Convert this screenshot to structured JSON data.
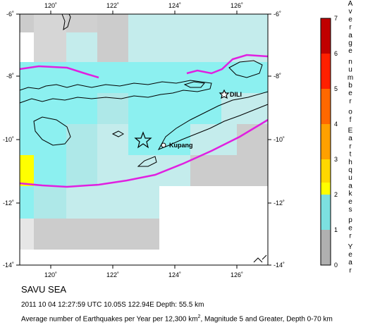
{
  "map": {
    "lon_ticks": [
      "120˚",
      "122˚",
      "124˚",
      "126˚"
    ],
    "lat_ticks_left": [
      "-6˚",
      "-8˚",
      "-10˚",
      "-12˚",
      "-14˚"
    ],
    "lat_ticks_right": [
      "-6˚",
      "-8˚",
      "-10˚",
      "-12˚",
      "-14˚"
    ],
    "places": [
      {
        "name": "DILI"
      },
      {
        "name": "Kupang"
      }
    ],
    "epicenter_icon": "star-icon",
    "plate_boundary_color": "#e020e0",
    "land_outline_color": "#000000",
    "grid_colors": {
      "c0": "#cccccc",
      "c1a": "#aee8e8",
      "c1b": "#c6f2f2",
      "c2": "#8cf0f0",
      "c_yellow": "#ffff00"
    }
  },
  "legend": {
    "label_letters": [
      "A",
      "v",
      "e",
      "r",
      "a",
      "g",
      "e",
      "n",
      "u",
      "m",
      "b",
      "e",
      "r",
      "o",
      "f",
      "E",
      "a",
      "r",
      "t",
      "h",
      "q",
      "u",
      "a",
      "k",
      "e",
      "s",
      "p",
      "e",
      "r",
      "Y",
      "e",
      "a",
      "r"
    ],
    "ticks": [
      "0",
      "1",
      "2",
      "3",
      "4",
      "5",
      "6",
      "7"
    ],
    "colors": [
      "#b0b0b0",
      "#7ce0e0",
      "#ffff00",
      "#ffd800",
      "#ffa000",
      "#ff6800",
      "#ff2000",
      "#c00000",
      "#800000"
    ]
  },
  "caption": {
    "region": "SAVU SEA",
    "event": "2011 10 04 12:27:59 UTC 10.05S 122.94E Depth: 55.5 km",
    "desc_before": "Average number of Earthquakes per Year per 12,300 km",
    "desc_sup": "2",
    "desc_after": ", Magnitude 5 and Greater, Depth 0-70 km"
  }
}
